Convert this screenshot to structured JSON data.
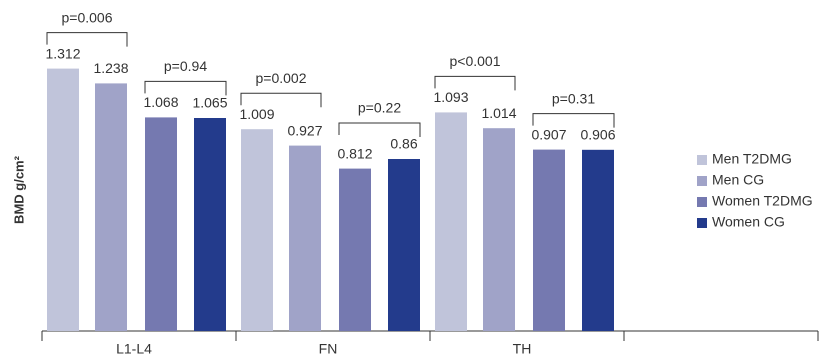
{
  "chart_data": {
    "type": "bar",
    "y_label": "BMD g/cm²",
    "categories": [
      "L1-L4",
      "FN",
      "TH",
      null
    ],
    "series": [
      {
        "name": "Men T2DMG",
        "color": "#c0c4da",
        "values": [
          1.312,
          1.009,
          1.093,
          null
        ]
      },
      {
        "name": "Men CG",
        "color": "#a0a3c8",
        "values": [
          1.238,
          0.927,
          1.014,
          null
        ]
      },
      {
        "name": "Women T2DMG",
        "color": "#7579b0",
        "values": [
          1.068,
          0.812,
          0.907,
          null
        ]
      },
      {
        "name": "Women CG",
        "color": "#233b8c",
        "values": [
          1.065,
          0.86,
          0.906,
          null
        ]
      }
    ],
    "annotations": [
      "p=0.006",
      "p=0.94",
      "p=0.002",
      "p=0.22",
      "p<0.001",
      "p=0.31"
    ],
    "ylim": [
      0,
      1.6
    ],
    "legend": "right"
  }
}
